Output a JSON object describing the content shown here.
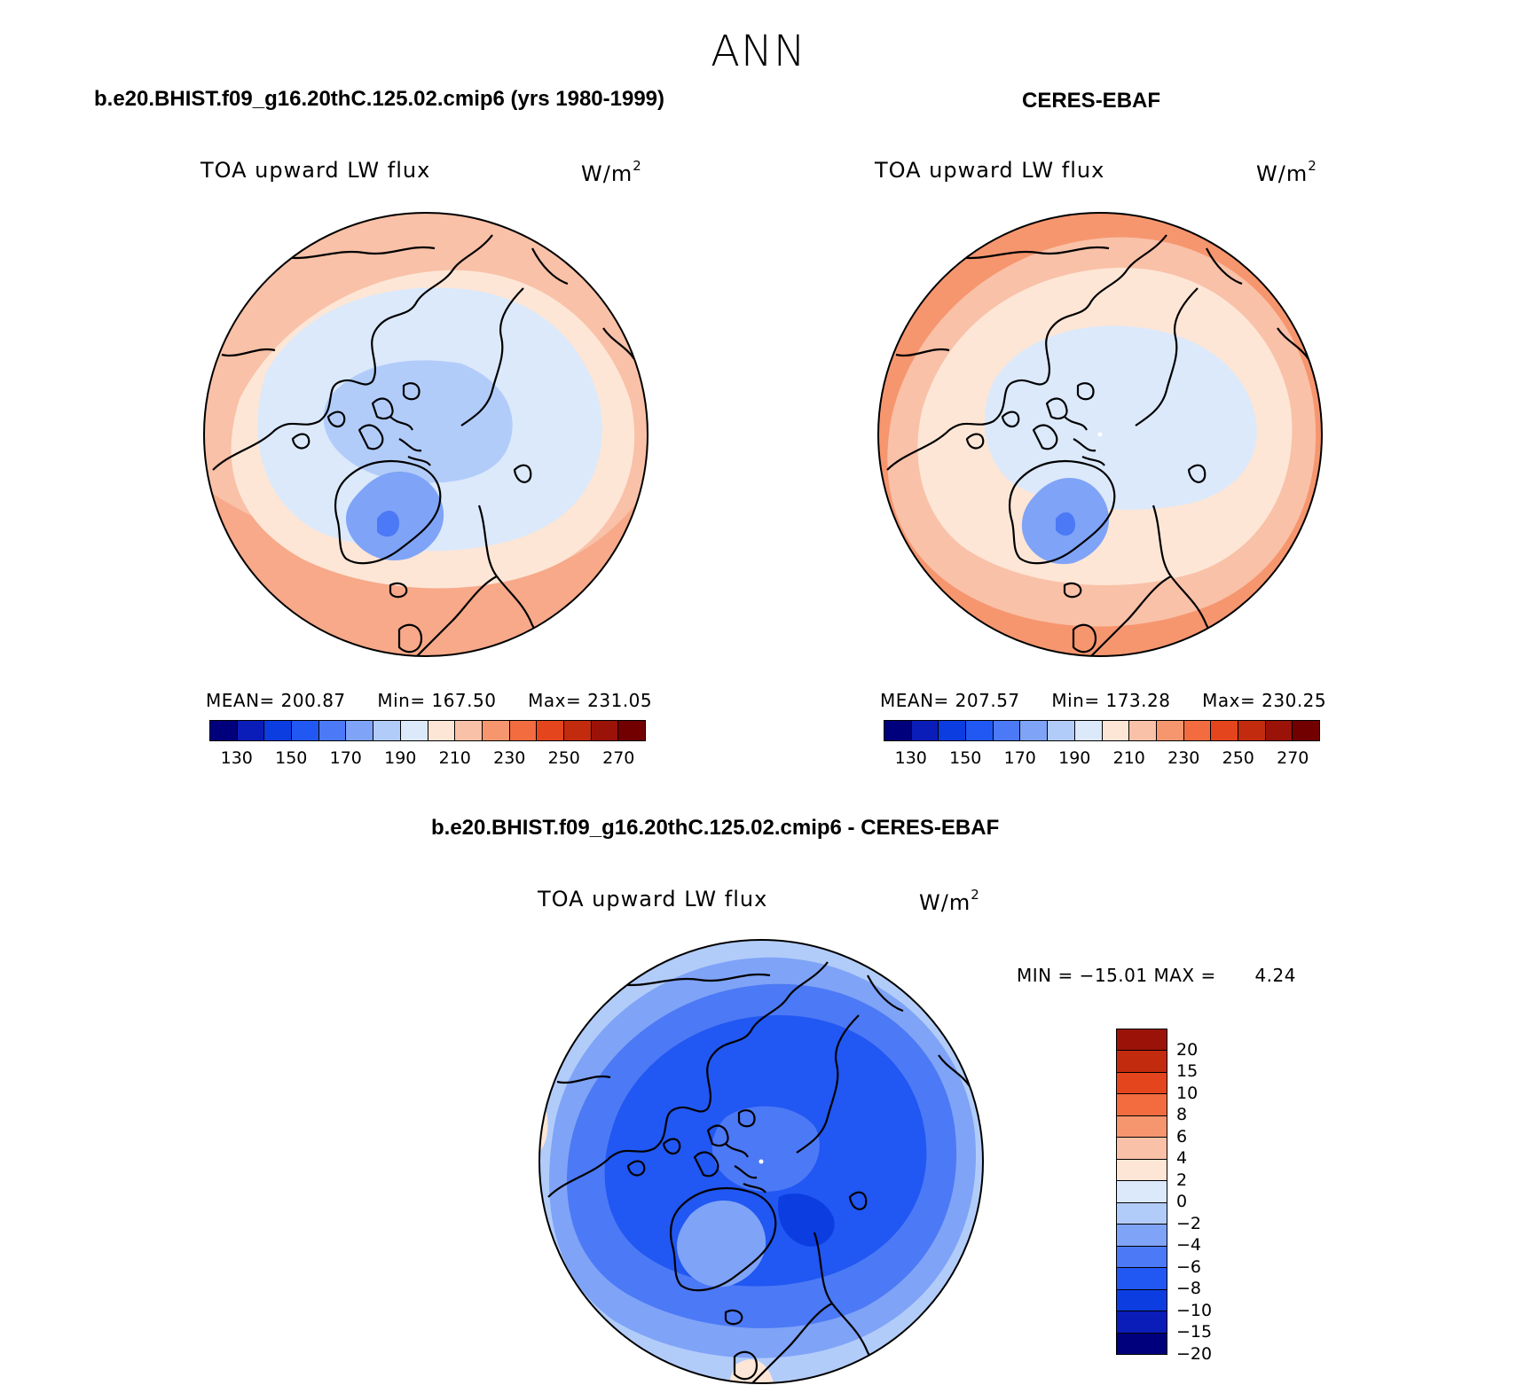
{
  "season": "ANN",
  "colors": {
    "scale14": [
      "#00007d",
      "#0a1db8",
      "#0c3de0",
      "#2157f2",
      "#4c79f5",
      "#7fa3f7",
      "#b2ccfa",
      "#dbe9fb",
      "#fde6d6",
      "#f9c1a8",
      "#f6966f",
      "#f26c3f",
      "#e4451c",
      "#c22b0e",
      "#9a1208",
      "#720000"
    ],
    "land": "#000000"
  },
  "panels": [
    {
      "id": "model",
      "title": "b.e20.BHIST.f09_g16.20thC.125.02.cmip6 (yrs 1980-1999)",
      "variable": "TOA upward LW flux",
      "units_base": "W/m",
      "units_exp": "2",
      "stats": {
        "mean_label": "MEAN=",
        "mean": "200.87",
        "min_label": "Min=",
        "min": "167.50",
        "max_label": "Max=",
        "max": "231.05"
      }
    },
    {
      "id": "obs",
      "title": "CERES-EBAF",
      "variable": "TOA upward LW flux",
      "units_base": "W/m",
      "units_exp": "2",
      "stats": {
        "mean_label": "MEAN=",
        "mean": "207.57",
        "min_label": "Min=",
        "min": "173.28",
        "max_label": "Max=",
        "max": "230.25"
      }
    },
    {
      "id": "diff",
      "title": "b.e20.BHIST.f09_g16.20thC.125.02.cmip6 - CERES-EBAF",
      "variable": "TOA upward LW flux",
      "units_base": "W/m",
      "units_exp": "2",
      "stats": {
        "min_label": "MIN =",
        "min": "−15.01",
        "max_label": "MAX =",
        "max": "4.24"
      }
    }
  ],
  "chart_data": [
    {
      "type": "heatmap",
      "projection": "north polar stereographic",
      "title": "b.e20.BHIST.f09_g16.20thC.125.02.cmip6 (yrs 1980-1999)",
      "field": "TOA upward LW flux",
      "units": "W/m2",
      "mean": 200.87,
      "min": 167.5,
      "max": 231.05,
      "colorbar": {
        "levels": [
          130,
          140,
          150,
          160,
          170,
          180,
          190,
          200,
          210,
          220,
          230,
          240,
          250,
          260,
          270
        ],
        "tick_labels": [
          "130",
          "150",
          "170",
          "190",
          "210",
          "230",
          "250",
          "270"
        ],
        "colors": [
          "#00007d",
          "#0a1db8",
          "#0c3de0",
          "#2157f2",
          "#4c79f5",
          "#7fa3f7",
          "#b2ccfa",
          "#dbe9fb",
          "#fde6d6",
          "#f9c1a8",
          "#f6966f",
          "#f26c3f",
          "#e4451c",
          "#c22b0e",
          "#9a1208",
          "#720000"
        ]
      }
    },
    {
      "type": "heatmap",
      "projection": "north polar stereographic",
      "title": "CERES-EBAF",
      "field": "TOA upward LW flux",
      "units": "W/m2",
      "mean": 207.57,
      "min": 173.28,
      "max": 230.25,
      "colorbar": {
        "levels": [
          130,
          140,
          150,
          160,
          170,
          180,
          190,
          200,
          210,
          220,
          230,
          240,
          250,
          260,
          270
        ],
        "tick_labels": [
          "130",
          "150",
          "170",
          "190",
          "210",
          "230",
          "250",
          "270"
        ],
        "colors": [
          "#00007d",
          "#0a1db8",
          "#0c3de0",
          "#2157f2",
          "#4c79f5",
          "#7fa3f7",
          "#b2ccfa",
          "#dbe9fb",
          "#fde6d6",
          "#f9c1a8",
          "#f6966f",
          "#f26c3f",
          "#e4451c",
          "#c22b0e",
          "#9a1208",
          "#720000"
        ]
      }
    },
    {
      "type": "heatmap",
      "projection": "north polar stereographic",
      "title": "b.e20.BHIST.f09_g16.20thC.125.02.cmip6 - CERES-EBAF",
      "field": "TOA upward LW flux",
      "units": "W/m2",
      "min": -15.01,
      "max": 4.24,
      "colorbar": {
        "tick_labels": [
          "20",
          "15",
          "10",
          "8",
          "6",
          "4",
          "2",
          "0",
          "−2",
          "−4",
          "−6",
          "−8",
          "−10",
          "−15",
          "−20"
        ],
        "colors_top_to_bottom": [
          "#9a1208",
          "#c22b0e",
          "#e4451c",
          "#f26c3f",
          "#f6966f",
          "#f9c1a8",
          "#fde6d6",
          "#dbe9fb",
          "#b2ccfa",
          "#7fa3f7",
          "#4c79f5",
          "#2157f2",
          "#0c3de0",
          "#0a1db8",
          "#00007d"
        ]
      }
    }
  ]
}
